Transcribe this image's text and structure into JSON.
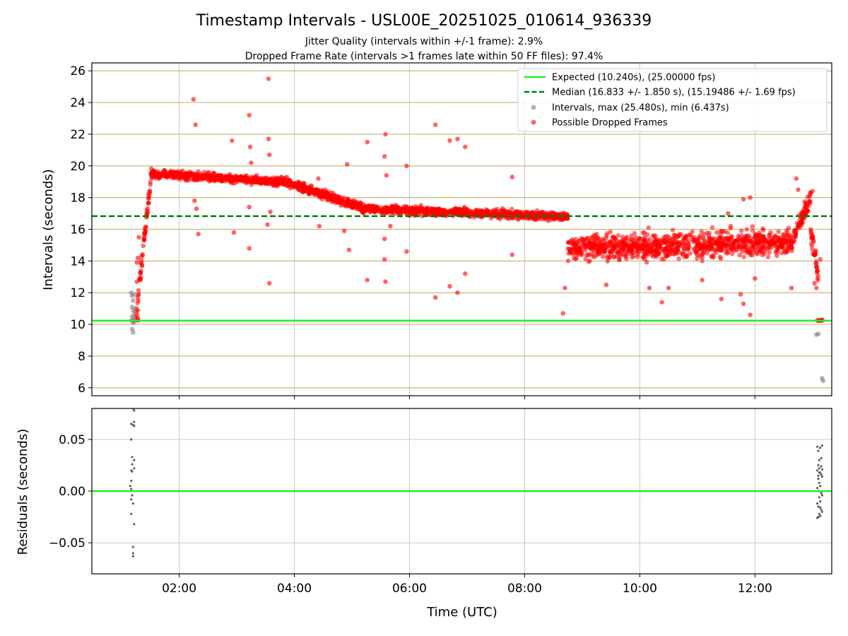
{
  "chart_data": [
    {
      "type": "scatter",
      "title": "Timestamp Intervals - USL00E_20251025_010614_936339",
      "subtitle_lines": [
        "Jitter Quality (intervals within +/-1 frame): 2.9%",
        "Dropped Frame Rate (intervals >1 frames late within 50 FF files): 97.4%"
      ],
      "xlabel": "",
      "ylabel": "Intervals (seconds)",
      "xlim": [
        "00:29",
        "13:20"
      ],
      "ylim": [
        5.5,
        26.5
      ],
      "x_ticks": [
        "02:00",
        "04:00",
        "06:00",
        "08:00",
        "10:00",
        "12:00"
      ],
      "y_ticks": [
        6,
        8,
        10,
        12,
        14,
        16,
        18,
        20,
        22,
        24,
        26
      ],
      "grid": true,
      "legend_position": "upper-right",
      "legend": [
        "Expected (10.240s), (25.00000 fps)",
        "Median (16.833 +/- 1.850 s), (15.19486 +/- 1.69 fps)",
        "Intervals, max (25.480s), min (6.437s)",
        "Possible Dropped Frames"
      ],
      "reference_lines": {
        "expected": 10.24,
        "median": 16.833
      },
      "colors": {
        "expected": "#22ee22",
        "median": "#008000",
        "intervals": "#808080",
        "dropped": "#ff0000",
        "horizontal_grid": "#c8b878"
      },
      "trend_segments": [
        {
          "series": "Possible Dropped Frames",
          "x_start": "01:16",
          "x_end": "01:31",
          "y_start": 11.0,
          "y_end": 19.6,
          "spread": 0.8
        },
        {
          "series": "Possible Dropped Frames",
          "x_start": "01:31",
          "x_end": "03:50",
          "y_start": 19.5,
          "y_end": 19.0,
          "spread": 0.45
        },
        {
          "series": "Possible Dropped Frames",
          "x_start": "03:50",
          "x_end": "05:10",
          "y_start": 19.0,
          "y_end": 17.4,
          "spread": 0.5
        },
        {
          "series": "Possible Dropped Frames",
          "x_start": "05:10",
          "x_end": "08:45",
          "y_start": 17.3,
          "y_end": 16.8,
          "spread": 0.45
        },
        {
          "series": "Possible Dropped Frames",
          "x_start": "08:45",
          "x_end": "12:40",
          "y_start": 14.8,
          "y_end": 15.2,
          "spread": 1.4
        },
        {
          "series": "Possible Dropped Frames",
          "x_start": "12:40",
          "x_end": "12:58",
          "y_start": 15.5,
          "y_end": 18.0,
          "spread": 1.0
        },
        {
          "series": "Possible Dropped Frames",
          "x_start": "12:58",
          "x_end": "13:07",
          "y_start": 16.0,
          "y_end": 12.5,
          "spread": 1.2
        }
      ],
      "series": [
        {
          "name": "Possible Dropped Frames",
          "points": [
            [
              "01:13",
              10.2
            ],
            [
              "01:14",
              10.5
            ],
            [
              "01:15",
              10.8
            ],
            [
              "01:15",
              11.0
            ],
            [
              "01:16",
              10.3
            ],
            [
              "01:16",
              10.6
            ],
            [
              "01:17",
              10.4
            ],
            [
              "01:17",
              10.9
            ],
            [
              "01:17",
              10.25
            ],
            [
              "01:16",
              12.7
            ],
            [
              "01:16",
              13.9
            ],
            [
              "01:17",
              14.2
            ],
            [
              "01:18",
              15.5
            ],
            [
              "02:15",
              24.2
            ],
            [
              "02:17",
              22.6
            ],
            [
              "02:16",
              17.8
            ],
            [
              "02:18",
              17.3
            ],
            [
              "02:20",
              15.7
            ],
            [
              "02:55",
              21.6
            ],
            [
              "02:57",
              15.8
            ],
            [
              "03:13",
              23.2
            ],
            [
              "03:14",
              21.2
            ],
            [
              "03:15",
              20.2
            ],
            [
              "03:13",
              17.4
            ],
            [
              "03:13",
              14.8
            ],
            [
              "03:33",
              25.5
            ],
            [
              "03:33",
              21.7
            ],
            [
              "03:34",
              20.7
            ],
            [
              "03:35",
              17.1
            ],
            [
              "03:32",
              16.3
            ],
            [
              "03:34",
              12.6
            ],
            [
              "04:25",
              19.2
            ],
            [
              "04:26",
              16.2
            ],
            [
              "04:55",
              20.1
            ],
            [
              "04:52",
              15.9
            ],
            [
              "04:57",
              14.7
            ],
            [
              "05:16",
              21.5
            ],
            [
              "05:16",
              12.8
            ],
            [
              "05:35",
              22.0
            ],
            [
              "05:34",
              20.6
            ],
            [
              "05:36",
              19.4
            ],
            [
              "05:34",
              15.4
            ],
            [
              "05:34",
              14.1
            ],
            [
              "05:35",
              12.7
            ],
            [
              "05:40",
              16.2
            ],
            [
              "05:57",
              20.0
            ],
            [
              "05:57",
              14.6
            ],
            [
              "06:27",
              22.6
            ],
            [
              "06:27",
              11.7
            ],
            [
              "06:42",
              21.6
            ],
            [
              "06:42",
              12.4
            ],
            [
              "06:50",
              21.7
            ],
            [
              "06:50",
              12.0
            ],
            [
              "06:58",
              21.2
            ],
            [
              "06:58",
              13.2
            ],
            [
              "07:47",
              19.3
            ],
            [
              "07:47",
              14.4
            ],
            [
              "08:40",
              10.7
            ],
            [
              "08:42",
              12.3
            ],
            [
              "09:25",
              12.5
            ],
            [
              "10:10",
              12.3
            ],
            [
              "10:23",
              11.4
            ],
            [
              "10:30",
              12.3
            ],
            [
              "11:05",
              12.8
            ],
            [
              "11:25",
              11.6
            ],
            [
              "11:32",
              17.0
            ],
            [
              "11:45",
              11.9
            ],
            [
              "11:48",
              11.3
            ],
            [
              "11:48",
              17.9
            ],
            [
              "11:55",
              10.6
            ],
            [
              "11:55",
              18.0
            ],
            [
              "12:00",
              12.9
            ],
            [
              "12:38",
              12.3
            ],
            [
              "12:43",
              19.2
            ],
            [
              "12:45",
              18.5
            ],
            [
              "13:00",
              18.4
            ],
            [
              "13:04",
              12.3
            ],
            [
              "13:02",
              12.6
            ],
            [
              "13:05",
              10.25
            ],
            [
              "13:06",
              10.25
            ],
            [
              "13:07",
              10.25
            ],
            [
              "13:08",
              10.25
            ],
            [
              "13:09",
              10.25
            ],
            [
              "13:10",
              10.25
            ],
            [
              "13:08",
              14.1
            ],
            [
              "13:10",
              10.3
            ]
          ]
        },
        {
          "name": "Intervals, max (25.480s), min (6.437s)",
          "points": [
            [
              "01:10",
              12.0
            ],
            [
              "01:11",
              11.8
            ],
            [
              "01:12",
              11.5
            ],
            [
              "01:13",
              11.9
            ],
            [
              "01:11",
              11.1
            ],
            [
              "01:12",
              10.9
            ],
            [
              "01:13",
              10.7
            ],
            [
              "01:11",
              10.5
            ],
            [
              "01:12",
              10.3
            ],
            [
              "01:13",
              10.22
            ],
            [
              "01:10",
              10.24
            ],
            [
              "01:12",
              10.1
            ],
            [
              "01:11",
              9.7
            ],
            [
              "01:12",
              9.5
            ],
            [
              "13:04",
              9.35
            ],
            [
              "13:06",
              9.4
            ],
            [
              "13:10",
              6.6
            ],
            [
              "13:11",
              6.44
            ]
          ]
        }
      ]
    },
    {
      "type": "scatter",
      "title": "",
      "xlabel": "Time (UTC)",
      "ylabel": "Residuals (seconds)",
      "xlim": [
        "00:29",
        "13:20"
      ],
      "ylim": [
        -0.08,
        0.08
      ],
      "x_ticks": [
        "02:00",
        "04:00",
        "06:00",
        "08:00",
        "10:00",
        "12:00"
      ],
      "y_ticks": [
        "−0.05",
        "0.00",
        "0.05"
      ],
      "y_tick_values": [
        -0.05,
        0.0,
        0.05
      ],
      "grid": true,
      "reference_lines": {
        "zero": 0.0
      },
      "series": [
        {
          "name": "Residuals",
          "color": "#606060",
          "points": [
            [
              "01:12",
              0.08
            ],
            [
              "01:13",
              0.078
            ],
            [
              "01:10",
              0.065
            ],
            [
              "01:12",
              0.064
            ],
            [
              "01:13",
              0.067
            ],
            [
              "01:13",
              0.063
            ],
            [
              "01:10",
              0.05
            ],
            [
              "01:11",
              0.033
            ],
            [
              "01:13",
              0.03
            ],
            [
              "01:11",
              0.026
            ],
            [
              "01:13",
              0.022
            ],
            [
              "01:10",
              0.02
            ],
            [
              "01:11",
              0.019
            ],
            [
              "01:10",
              0.01
            ],
            [
              "01:09",
              0.005
            ],
            [
              "01:10",
              0.002
            ],
            [
              "01:11",
              -0.004
            ],
            [
              "01:10",
              -0.008
            ],
            [
              "01:12",
              -0.012
            ],
            [
              "01:10",
              -0.022
            ],
            [
              "01:13",
              -0.032
            ],
            [
              "01:12",
              -0.054
            ],
            [
              "01:12",
              -0.06
            ],
            [
              "01:12",
              -0.063
            ],
            [
              "13:05",
              0.043
            ],
            [
              "13:06",
              0.039
            ],
            [
              "13:08",
              0.042
            ],
            [
              "13:10",
              0.044
            ],
            [
              "13:07",
              0.03
            ],
            [
              "13:09",
              0.032
            ],
            [
              "13:06",
              0.025
            ],
            [
              "13:07",
              0.022
            ],
            [
              "13:05",
              0.02
            ],
            [
              "13:08",
              0.018
            ],
            [
              "13:09",
              0.016
            ],
            [
              "13:10",
              0.014
            ],
            [
              "13:06",
              0.012
            ],
            [
              "13:07",
              0.008
            ],
            [
              "13:08",
              0.005
            ],
            [
              "13:05",
              0.003
            ],
            [
              "13:06",
              0.0
            ],
            [
              "13:09",
              -0.002
            ],
            [
              "13:10",
              -0.004
            ],
            [
              "13:07",
              -0.006
            ],
            [
              "13:08",
              -0.01
            ],
            [
              "13:05",
              -0.012
            ],
            [
              "13:06",
              -0.015
            ],
            [
              "13:09",
              -0.018
            ],
            [
              "13:10",
              -0.02
            ],
            [
              "13:07",
              -0.022
            ],
            [
              "13:05",
              -0.026
            ],
            [
              "13:06",
              -0.025
            ],
            [
              "13:08",
              -0.024
            ],
            [
              "13:07",
              0.018
            ],
            [
              "13:09",
              0.024
            ],
            [
              "13:06",
              0.015
            ],
            [
              "13:08",
              -0.016
            ],
            [
              "13:10",
              0.021
            ]
          ]
        }
      ]
    }
  ]
}
